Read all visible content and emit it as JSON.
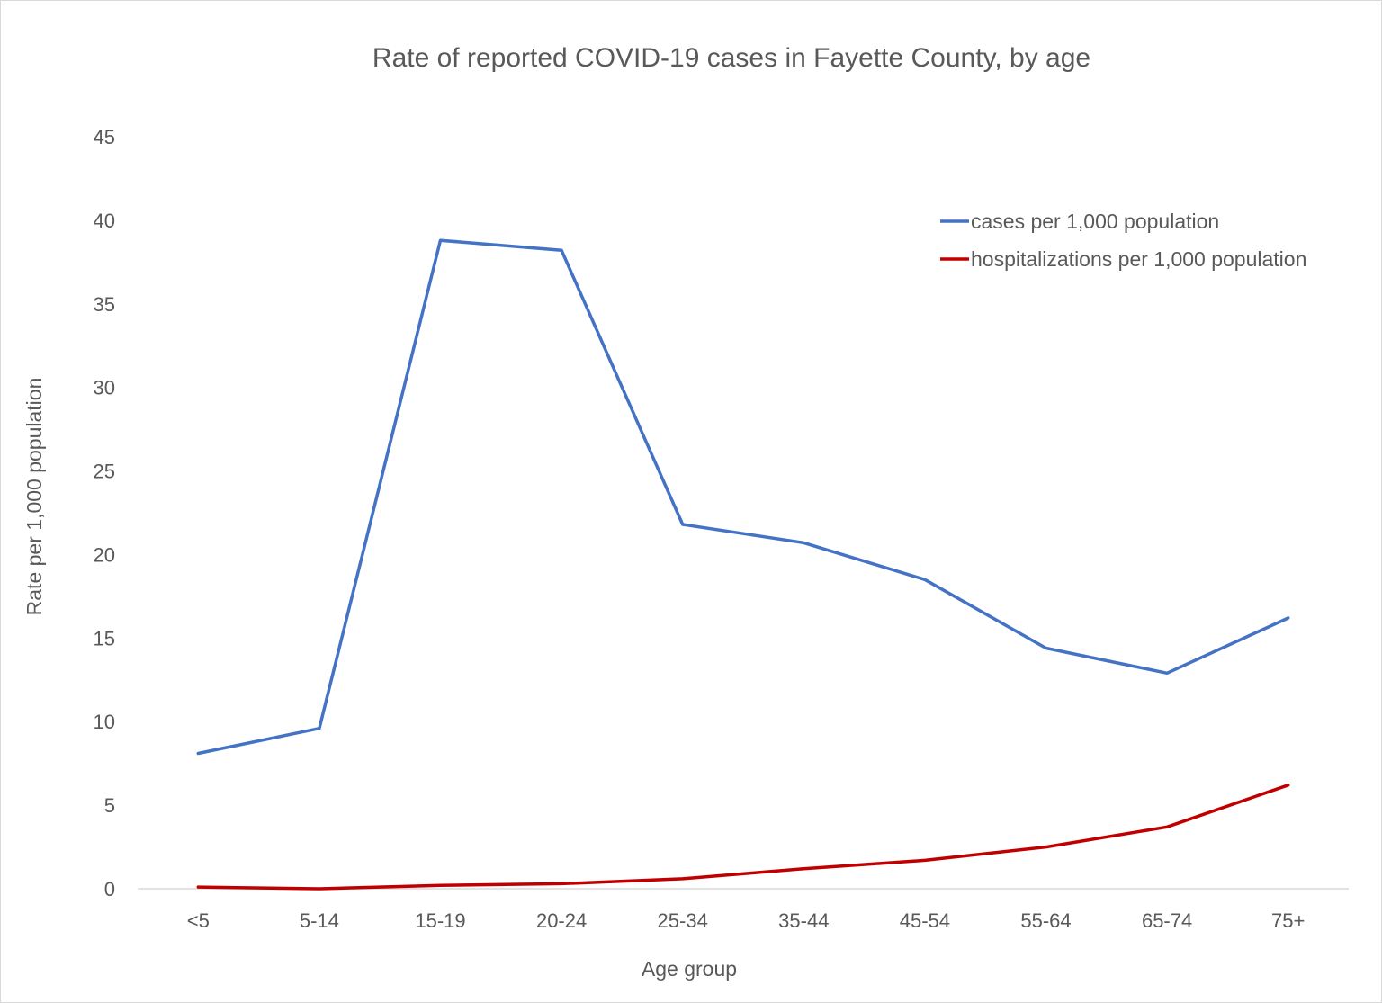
{
  "chart_data": {
    "type": "line",
    "title": "Rate of reported COVID-19 cases in Fayette County, by age",
    "xlabel": "Age group",
    "ylabel": "Rate per 1,000 population",
    "categories": [
      "<5",
      "5-14",
      "15-19",
      "20-24",
      "25-34",
      "35-44",
      "45-54",
      "55-64",
      "65-74",
      "75+"
    ],
    "ylim": [
      0,
      45
    ],
    "yticks": [
      "0",
      "5",
      "10",
      "15",
      "20",
      "25",
      "30",
      "35",
      "40",
      "45"
    ],
    "grid": false,
    "legend_position": "top-right",
    "series": [
      {
        "name": "cases per 1,000 population",
        "color": "#4472c4",
        "values": [
          8.1,
          9.6,
          38.8,
          38.2,
          21.8,
          20.7,
          18.5,
          14.4,
          12.9,
          16.2
        ]
      },
      {
        "name": "hospitalizations per 1,000 population",
        "color": "#c00000",
        "values": [
          0.1,
          0.0,
          0.2,
          0.3,
          0.6,
          1.2,
          1.7,
          2.5,
          3.7,
          6.2
        ]
      }
    ]
  }
}
